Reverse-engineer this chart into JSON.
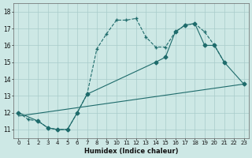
{
  "xlabel": "Humidex (Indice chaleur)",
  "ylabel": "",
  "xlim": [
    -0.5,
    23.5
  ],
  "ylim": [
    10.5,
    18.5
  ],
  "yticks": [
    11,
    12,
    13,
    14,
    15,
    16,
    17,
    18
  ],
  "xticks": [
    0,
    1,
    2,
    3,
    4,
    5,
    6,
    7,
    8,
    9,
    10,
    11,
    12,
    13,
    14,
    15,
    16,
    17,
    18,
    19,
    20,
    21,
    22,
    23
  ],
  "bg_color": "#cde8e5",
  "grid_color": "#a8ccca",
  "line_color": "#1e6b6b",
  "line1_x": [
    0,
    1,
    2,
    3,
    4,
    5,
    6,
    7,
    8,
    9,
    10,
    11,
    12,
    13,
    14,
    15,
    16,
    17,
    18,
    19,
    20,
    21
  ],
  "line1_y": [
    12.0,
    11.6,
    11.5,
    11.1,
    11.0,
    11.0,
    12.0,
    13.1,
    15.8,
    16.7,
    17.5,
    17.5,
    17.6,
    16.5,
    15.9,
    15.9,
    16.8,
    17.2,
    17.3,
    16.8,
    16.0,
    15.0
  ],
  "line2_x": [
    0,
    2,
    3,
    4,
    5,
    6,
    7,
    14,
    15,
    16,
    17,
    18,
    19,
    20,
    21,
    23
  ],
  "line2_y": [
    12.0,
    11.5,
    11.1,
    11.0,
    11.0,
    12.0,
    13.1,
    15.0,
    15.3,
    16.8,
    17.2,
    17.3,
    16.0,
    16.0,
    15.0,
    13.7
  ],
  "line3_x": [
    0,
    23
  ],
  "line3_y": [
    11.8,
    13.7
  ]
}
